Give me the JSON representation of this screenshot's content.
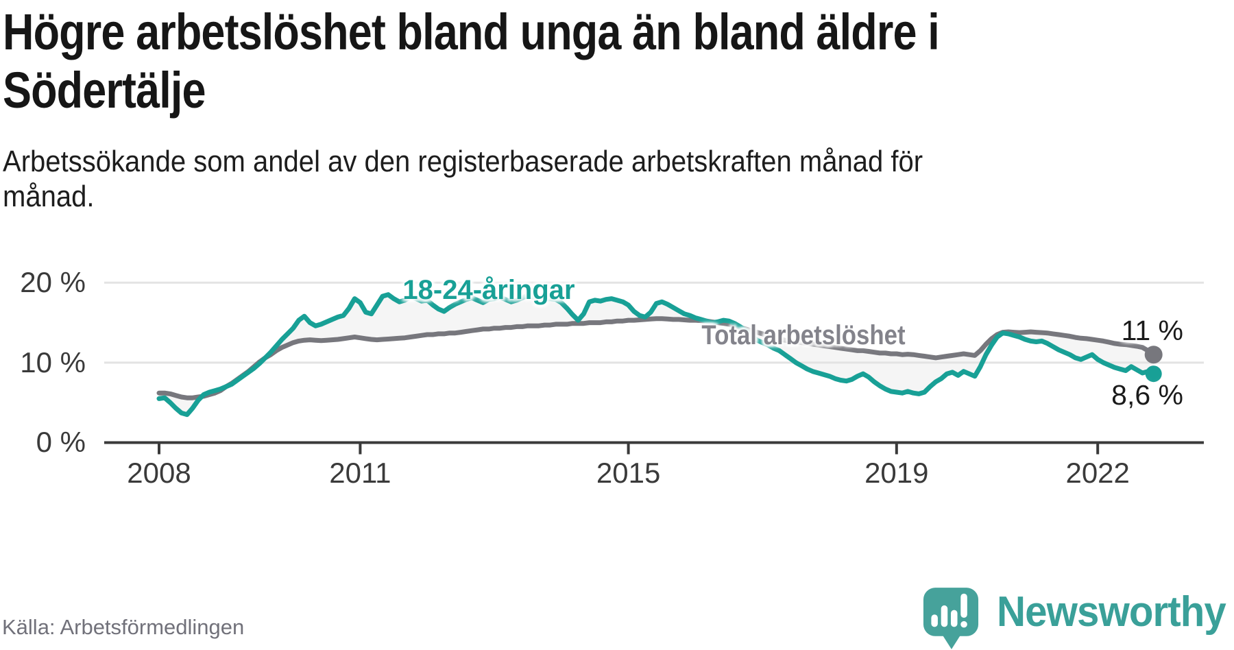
{
  "header": {
    "title": "Högre arbetslöshet bland unga än bland äldre i\nSödertälje",
    "subtitle": "Arbetssökande som andel av den registerbaserade arbetskraften månad för\nmånad."
  },
  "footer": {
    "source": "Källa: Arbetsförmedlingen",
    "brand": "Newsworthy",
    "logo_icon": "newsworthy-bubble-barchart",
    "logo_color": "#46a29b",
    "wordmark_color": "#3aa099"
  },
  "chart_data": {
    "type": "line",
    "frequency": "monthly",
    "x_start": "2008-01",
    "x_end": "2022-11",
    "x_ticks": [
      "2008",
      "2011",
      "2015",
      "2019",
      "2022"
    ],
    "y_tick_labels": [
      "20 %",
      "10 %",
      "0 %"
    ],
    "y_ticks_pct": [
      20,
      10,
      0
    ],
    "ylim": [
      0,
      26
    ],
    "grid": true,
    "legend_position": "inline-labels",
    "fill_between_color": "#f5f5f5",
    "gridline_color": "#e3e3e3",
    "axis_color": "#3a3a3a",
    "series": [
      {
        "name": "18-24-åringar",
        "color": "#18a096",
        "label_color": "#18a096",
        "end_label": "8,6 %",
        "end_value": 8.6,
        "values": [
          5.5,
          5.6,
          5.0,
          4.3,
          3.7,
          3.5,
          4.3,
          5.3,
          6.0,
          6.3,
          6.5,
          6.7,
          7.0,
          7.3,
          7.8,
          8.3,
          8.8,
          9.3,
          9.9,
          10.6,
          11.3,
          12.1,
          12.9,
          13.6,
          14.3,
          15.3,
          15.8,
          15.0,
          14.6,
          14.8,
          15.1,
          15.4,
          15.7,
          15.9,
          16.8,
          18.0,
          17.5,
          16.3,
          16.1,
          17.2,
          18.3,
          18.5,
          18.0,
          17.6,
          17.8,
          18.2,
          18.0,
          17.7,
          17.8,
          17.2,
          16.7,
          16.4,
          16.9,
          17.3,
          17.6,
          17.9,
          18.1,
          17.8,
          17.5,
          17.9,
          18.0,
          18.2,
          17.9,
          17.6,
          17.8,
          18.1,
          18.4,
          18.2,
          17.9,
          17.9,
          18.0,
          17.9,
          17.5,
          16.8,
          16.0,
          15.3,
          16.1,
          17.6,
          17.8,
          17.7,
          17.9,
          18.0,
          17.8,
          17.6,
          17.2,
          16.4,
          15.9,
          15.7,
          16.3,
          17.4,
          17.6,
          17.3,
          16.9,
          16.5,
          16.1,
          15.9,
          15.6,
          15.4,
          15.2,
          15.0,
          15.1,
          15.3,
          15.2,
          14.9,
          14.5,
          14.0,
          13.4,
          12.8,
          12.5,
          12.2,
          11.8,
          11.5,
          11.0,
          10.5,
          10.0,
          9.6,
          9.2,
          8.9,
          8.7,
          8.5,
          8.3,
          8.0,
          7.8,
          7.7,
          7.9,
          8.3,
          8.6,
          8.2,
          7.6,
          7.1,
          6.7,
          6.4,
          6.3,
          6.2,
          6.4,
          6.2,
          6.1,
          6.3,
          7.0,
          7.6,
          8.0,
          8.6,
          8.8,
          8.4,
          8.9,
          8.6,
          8.3,
          9.5,
          11.0,
          12.2,
          13.2,
          13.7,
          13.6,
          13.4,
          13.2,
          12.9,
          12.7,
          12.6,
          12.7,
          12.4,
          12.0,
          11.6,
          11.3,
          11.0,
          10.6,
          10.4,
          10.7,
          11.0,
          10.4,
          10.0,
          9.7,
          9.4,
          9.2,
          9.0,
          9.5,
          9.1,
          8.7,
          8.9,
          8.6
        ]
      },
      {
        "name": "Total arbetslöshet",
        "color": "#77777d",
        "label_color": "#83838b",
        "end_label": "11 %",
        "end_value": 11.0,
        "values": [
          6.2,
          6.2,
          6.1,
          5.9,
          5.7,
          5.6,
          5.6,
          5.7,
          5.8,
          6.0,
          6.2,
          6.5,
          7.0,
          7.4,
          7.9,
          8.4,
          8.9,
          9.5,
          10.1,
          10.6,
          11.0,
          11.5,
          11.9,
          12.2,
          12.5,
          12.7,
          12.8,
          12.85,
          12.8,
          12.75,
          12.8,
          12.85,
          12.9,
          13.0,
          13.1,
          13.2,
          13.1,
          13.0,
          12.9,
          12.85,
          12.9,
          12.95,
          13.0,
          13.05,
          13.1,
          13.2,
          13.3,
          13.4,
          13.5,
          13.5,
          13.6,
          13.6,
          13.7,
          13.7,
          13.8,
          13.9,
          14.0,
          14.1,
          14.2,
          14.2,
          14.3,
          14.3,
          14.4,
          14.4,
          14.5,
          14.5,
          14.6,
          14.6,
          14.6,
          14.7,
          14.7,
          14.8,
          14.8,
          14.8,
          14.9,
          14.9,
          14.9,
          15.0,
          15.0,
          15.0,
          15.1,
          15.1,
          15.2,
          15.2,
          15.3,
          15.3,
          15.35,
          15.4,
          15.45,
          15.5,
          15.5,
          15.45,
          15.4,
          15.4,
          15.35,
          15.3,
          15.3,
          15.25,
          15.2,
          15.1,
          15.0,
          14.9,
          14.8,
          14.6,
          14.4,
          14.2,
          14.0,
          13.8,
          13.6,
          13.4,
          13.2,
          13.0,
          12.8,
          12.7,
          12.6,
          12.5,
          12.4,
          12.3,
          12.2,
          12.1,
          12.0,
          11.9,
          11.8,
          11.7,
          11.6,
          11.5,
          11.5,
          11.4,
          11.3,
          11.2,
          11.2,
          11.1,
          11.1,
          11.0,
          11.05,
          11.0,
          10.9,
          10.8,
          10.7,
          10.6,
          10.7,
          10.8,
          10.9,
          11.0,
          11.1,
          11.0,
          10.9,
          11.5,
          12.3,
          13.0,
          13.5,
          13.8,
          13.85,
          13.8,
          13.75,
          13.8,
          13.85,
          13.8,
          13.75,
          13.7,
          13.6,
          13.5,
          13.4,
          13.3,
          13.15,
          13.05,
          13.0,
          12.9,
          12.8,
          12.7,
          12.55,
          12.4,
          12.3,
          12.25,
          12.15,
          12.05,
          11.9,
          11.5,
          11.0
        ]
      }
    ]
  }
}
